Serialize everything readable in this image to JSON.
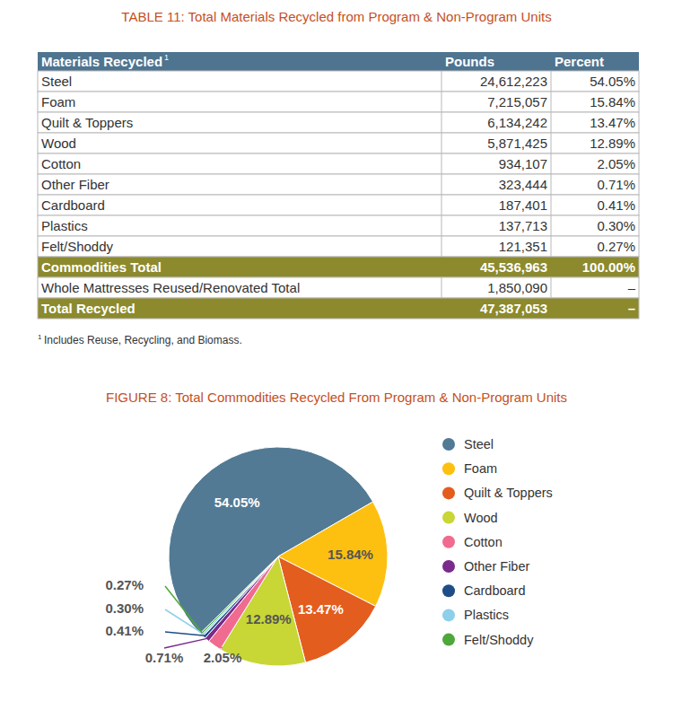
{
  "table": {
    "title": "TABLE 11: Total Materials Recycled from Program & Non-Program Units",
    "header": [
      "Materials Recycled",
      "Pounds",
      "Percent"
    ],
    "header_note": "1",
    "rows": [
      [
        "Steel",
        "24,612,223",
        "54.05%"
      ],
      [
        "Foam",
        "7,215,057",
        "15.84%"
      ],
      [
        "Quilt & Toppers",
        "6,134,242",
        "13.47%"
      ],
      [
        "Wood",
        "5,871,425",
        "12.89%"
      ],
      [
        "Cotton",
        "934,107",
        "2.05%"
      ],
      [
        "Other Fiber",
        "323,444",
        "0.71%"
      ],
      [
        "Cardboard",
        "187,401",
        "0.41%"
      ],
      [
        "Plastics",
        "137,713",
        "0.30%"
      ],
      [
        "Felt/Shoddy",
        "121,351",
        "0.27%"
      ]
    ],
    "commodities_total": [
      "Commodities Total",
      "45,536,963",
      "100.00%"
    ],
    "reused": [
      "Whole Mattresses Reused/Renovated Total",
      "1,850,090",
      "–"
    ],
    "total_recycled": [
      "Total Recycled",
      "47,387,053",
      "–"
    ],
    "footnote": {
      "mark": "1",
      "text": "Includes Reuse, Recycling, and Biomass."
    }
  },
  "chart_data": {
    "type": "pie",
    "title": "FIGURE 8: Total Commodities Recycled From Program & Non-Program Units",
    "categories": [
      "Steel",
      "Foam",
      "Quilt & Toppers",
      "Wood",
      "Cotton",
      "Other Fiber",
      "Cardboard",
      "Plastics",
      "Felt/Shoddy"
    ],
    "values": [
      54.05,
      15.84,
      13.47,
      12.89,
      2.05,
      0.71,
      0.41,
      0.3,
      0.27
    ],
    "value_labels": [
      "54.05%",
      "15.84%",
      "13.47%",
      "12.89%",
      "2.05%",
      "0.71%",
      "0.41%",
      "0.30%",
      "0.27%"
    ],
    "colors": [
      "#527a94",
      "#fdc010",
      "#e35d1f",
      "#c8d636",
      "#f06b8f",
      "#7a2b8b",
      "#1f4e86",
      "#8ecfe9",
      "#4ea73a"
    ],
    "data_labels": true,
    "legend": "right"
  }
}
